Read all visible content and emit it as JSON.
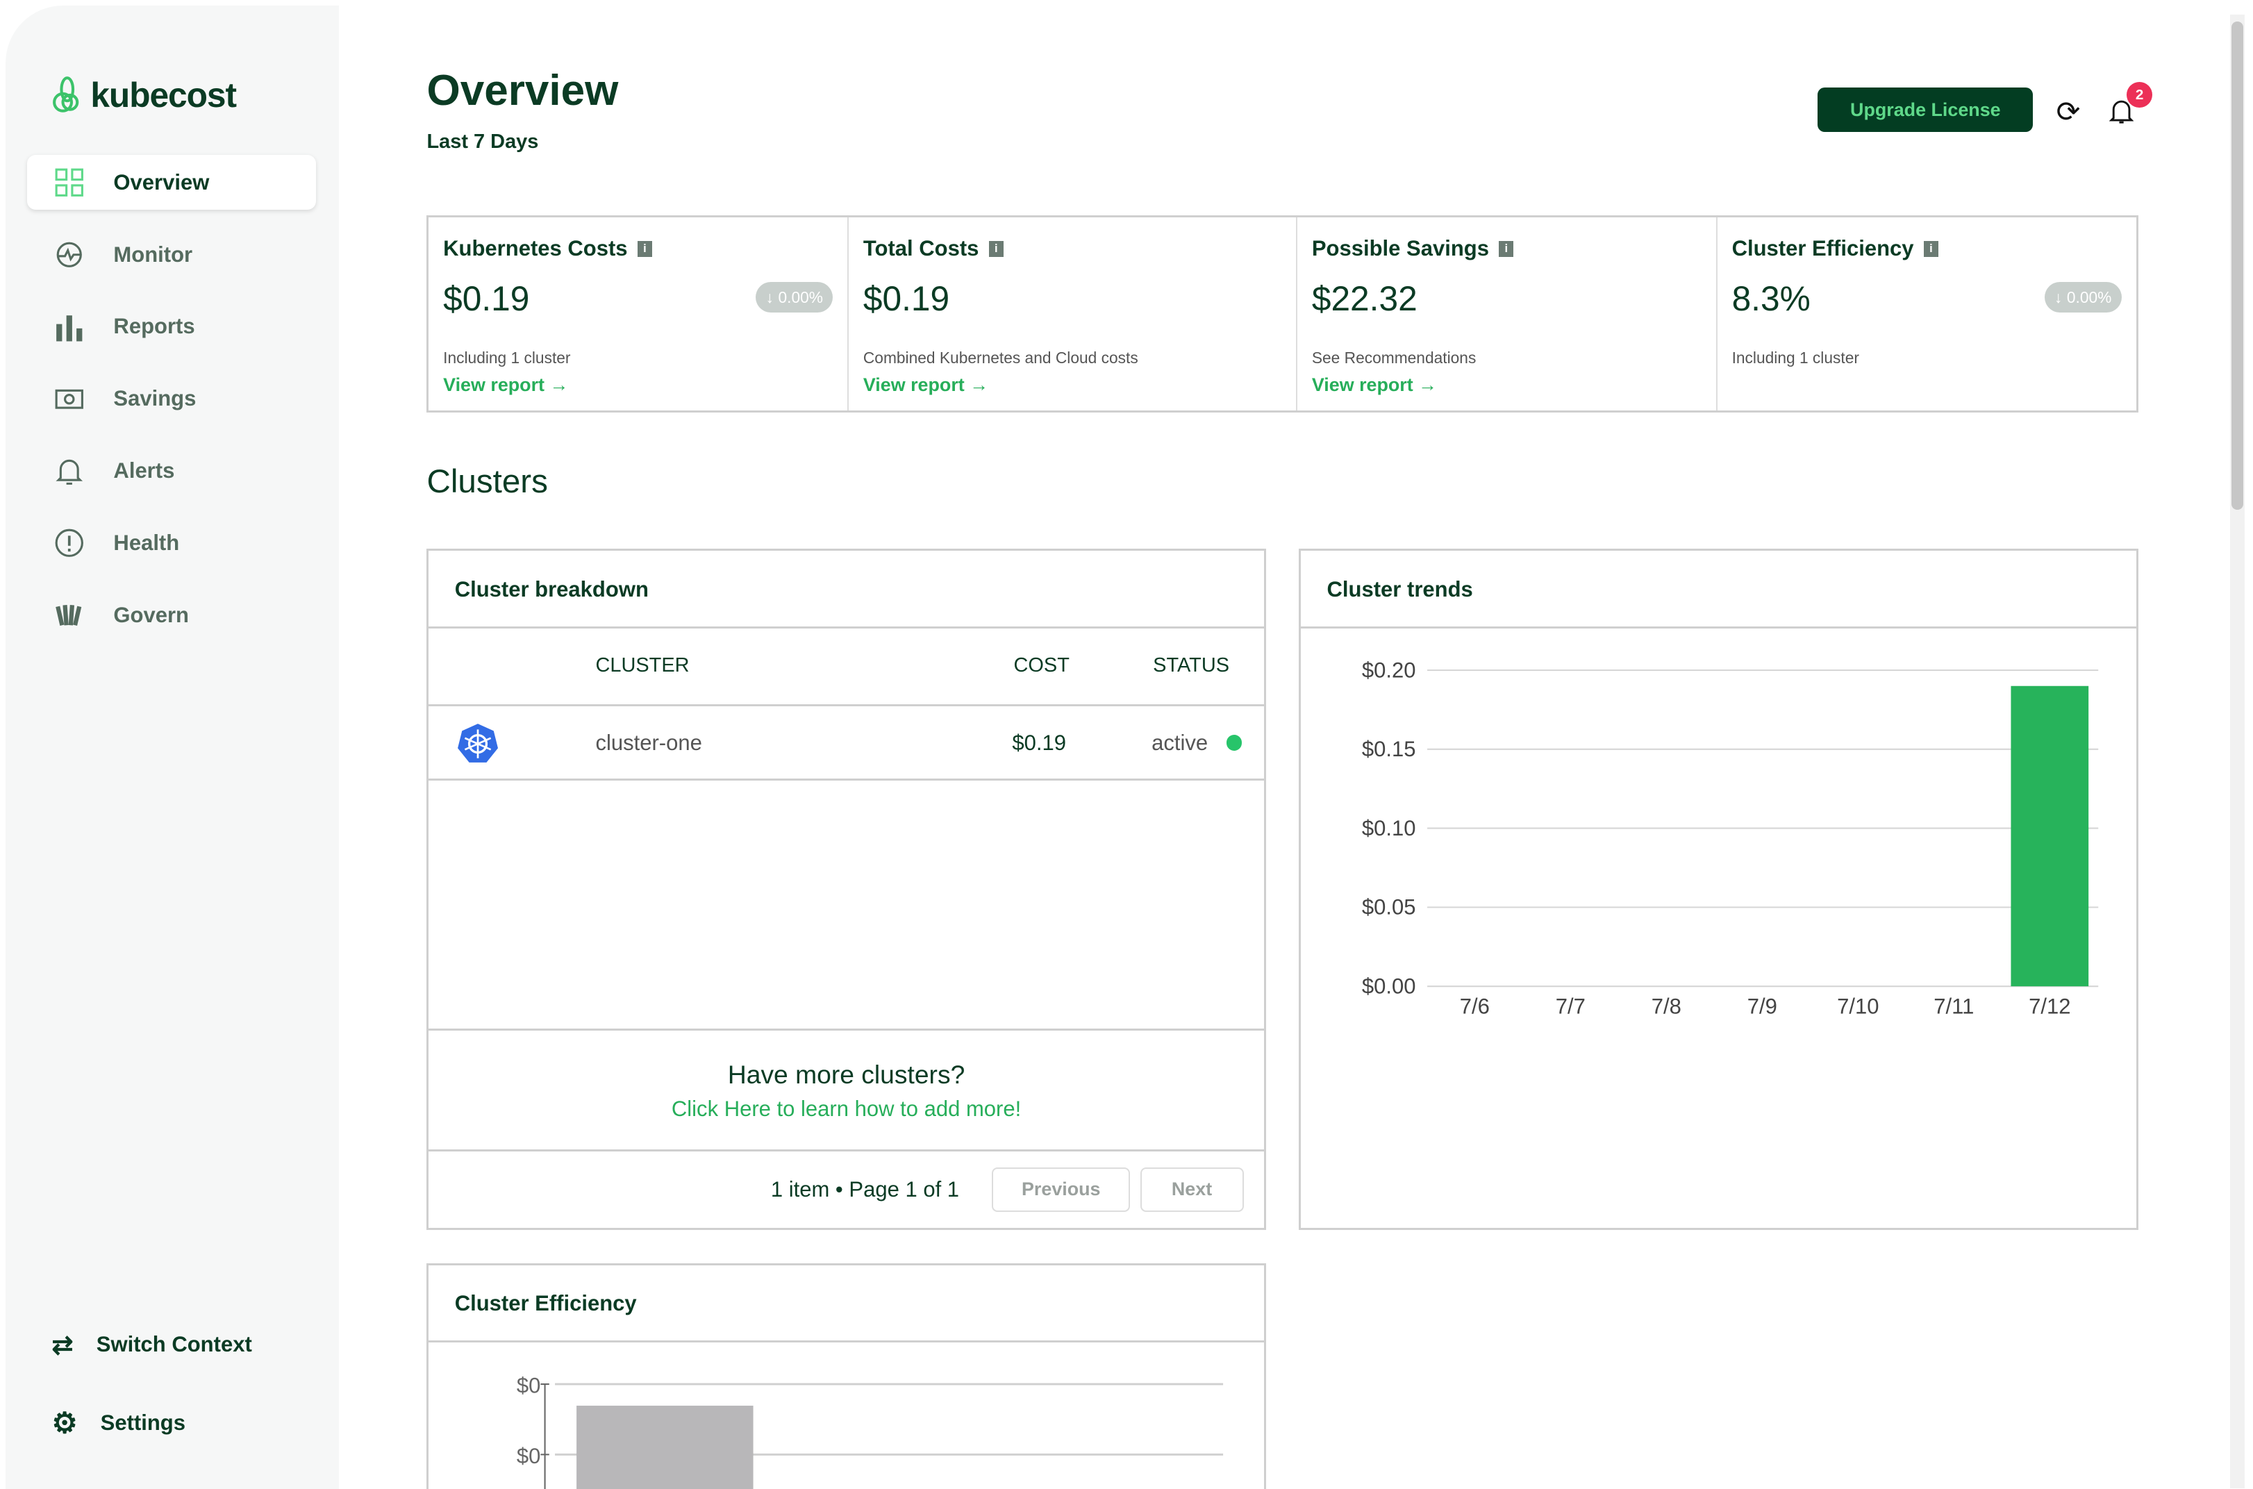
{
  "brand": {
    "name": "kubecost",
    "accent": "#27ae5a",
    "dark": "#033d22"
  },
  "sidebar": {
    "items": [
      {
        "label": "Overview",
        "icon": "grid-icon",
        "active": true
      },
      {
        "label": "Monitor",
        "icon": "pulse-icon"
      },
      {
        "label": "Reports",
        "icon": "bar-chart-icon"
      },
      {
        "label": "Savings",
        "icon": "money-icon"
      },
      {
        "label": "Alerts",
        "icon": "bell-icon"
      },
      {
        "label": "Health",
        "icon": "alert-circle-icon"
      },
      {
        "label": "Govern",
        "icon": "govern-icon"
      }
    ],
    "switch_context": "Switch Context",
    "settings": "Settings"
  },
  "header": {
    "title": "Overview",
    "subtitle": "Last 7 Days",
    "upgrade": "Upgrade License",
    "notifications": "2"
  },
  "kpis": [
    {
      "title": "Kubernetes Costs",
      "value": "$0.19",
      "change": "0.00%",
      "desc": "Including 1 cluster",
      "link": "View report →"
    },
    {
      "title": "Total Costs",
      "value": "$0.19",
      "desc": "Combined Kubernetes and Cloud costs",
      "link": "View report →"
    },
    {
      "title": "Possible Savings",
      "value": "$22.32",
      "desc": "See Recommendations",
      "link": "View report →"
    },
    {
      "title": "Cluster Efficiency",
      "value": "8.3%",
      "change": "0.00%",
      "desc": "Including 1 cluster"
    }
  ],
  "clusters_heading": "Clusters",
  "breakdown": {
    "title": "Cluster breakdown",
    "columns": [
      "CLUSTER",
      "COST",
      "STATUS"
    ],
    "rows": [
      {
        "name": "cluster-one",
        "cost": "$0.19",
        "status": "active",
        "status_color": "#27c46a"
      }
    ],
    "more_title": "Have more clusters?",
    "more_link": "Click Here to learn how to add more!",
    "pagination": "1 item • Page 1 of 1",
    "prev": "Previous",
    "next": "Next"
  },
  "chart_data": [
    {
      "type": "bar",
      "title": "Cluster trends",
      "categories": [
        "7/6",
        "7/7",
        "7/8",
        "7/9",
        "7/10",
        "7/11",
        "7/12"
      ],
      "values": [
        0,
        0,
        0,
        0,
        0,
        0,
        0.19
      ],
      "yticks": [
        "$0.00",
        "$0.05",
        "$0.10",
        "$0.15",
        "$0.20"
      ],
      "ylim": [
        0,
        0.2
      ],
      "color": "#27b35b",
      "grid": true
    },
    {
      "type": "bar",
      "title": "Cluster Efficiency",
      "yticks": [
        "$0",
        "$0"
      ],
      "color": "#b8b7b9",
      "grid": true
    }
  ]
}
